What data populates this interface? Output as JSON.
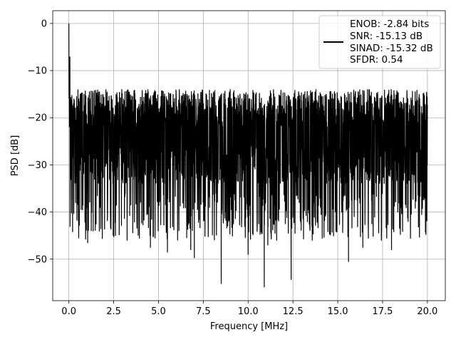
{
  "chart_data": {
    "type": "line",
    "title": "",
    "xlabel": "Frequency [MHz]",
    "ylabel": "PSD [dB]",
    "xlim": [
      -0.9,
      21.0
    ],
    "ylim": [
      -58.8,
      2.7
    ],
    "xticks": [
      0.0,
      2.5,
      5.0,
      7.5,
      10.0,
      12.5,
      15.0,
      17.5,
      20.0
    ],
    "xtick_labels": [
      "0.0",
      "2.5",
      "5.0",
      "7.5",
      "10.0",
      "12.5",
      "15.0",
      "17.5",
      "20.0"
    ],
    "yticks": [
      0,
      -10,
      -20,
      -30,
      -40,
      -50
    ],
    "ytick_labels": [
      "0",
      "−10",
      "−20",
      "−30",
      "−40",
      "−50"
    ],
    "grid": true,
    "legend_position": "top-right",
    "legend_entries": [
      "ENOB: -2.84 bits",
      "SNR: -15.13 dB",
      "SINAD: -15.32 dB",
      "SFDR: 0.54"
    ],
    "series": [
      {
        "color": "#000000",
        "x_range": [
          0.0,
          20.0
        ],
        "peak": {
          "x": 0.0,
          "y": 0.0
        },
        "noise_floor_band": [
          -34,
          -14
        ],
        "typical_median": -26,
        "deep_dips": [
          {
            "x": 0.55,
            "y": -45.5
          },
          {
            "x": 1.05,
            "y": -46.5
          },
          {
            "x": 3.25,
            "y": -46.0
          },
          {
            "x": 4.55,
            "y": -47.5
          },
          {
            "x": 5.5,
            "y": -48.5
          },
          {
            "x": 6.8,
            "y": -48.0
          },
          {
            "x": 7.0,
            "y": -49.7
          },
          {
            "x": 8.5,
            "y": -55.2
          },
          {
            "x": 10.0,
            "y": -49.0
          },
          {
            "x": 10.9,
            "y": -55.9
          },
          {
            "x": 11.1,
            "y": -47.0
          },
          {
            "x": 12.4,
            "y": -54.3
          },
          {
            "x": 15.6,
            "y": -50.5
          },
          {
            "x": 16.4,
            "y": -47.5
          },
          {
            "x": 18.0,
            "y": -48.0
          }
        ]
      }
    ]
  }
}
